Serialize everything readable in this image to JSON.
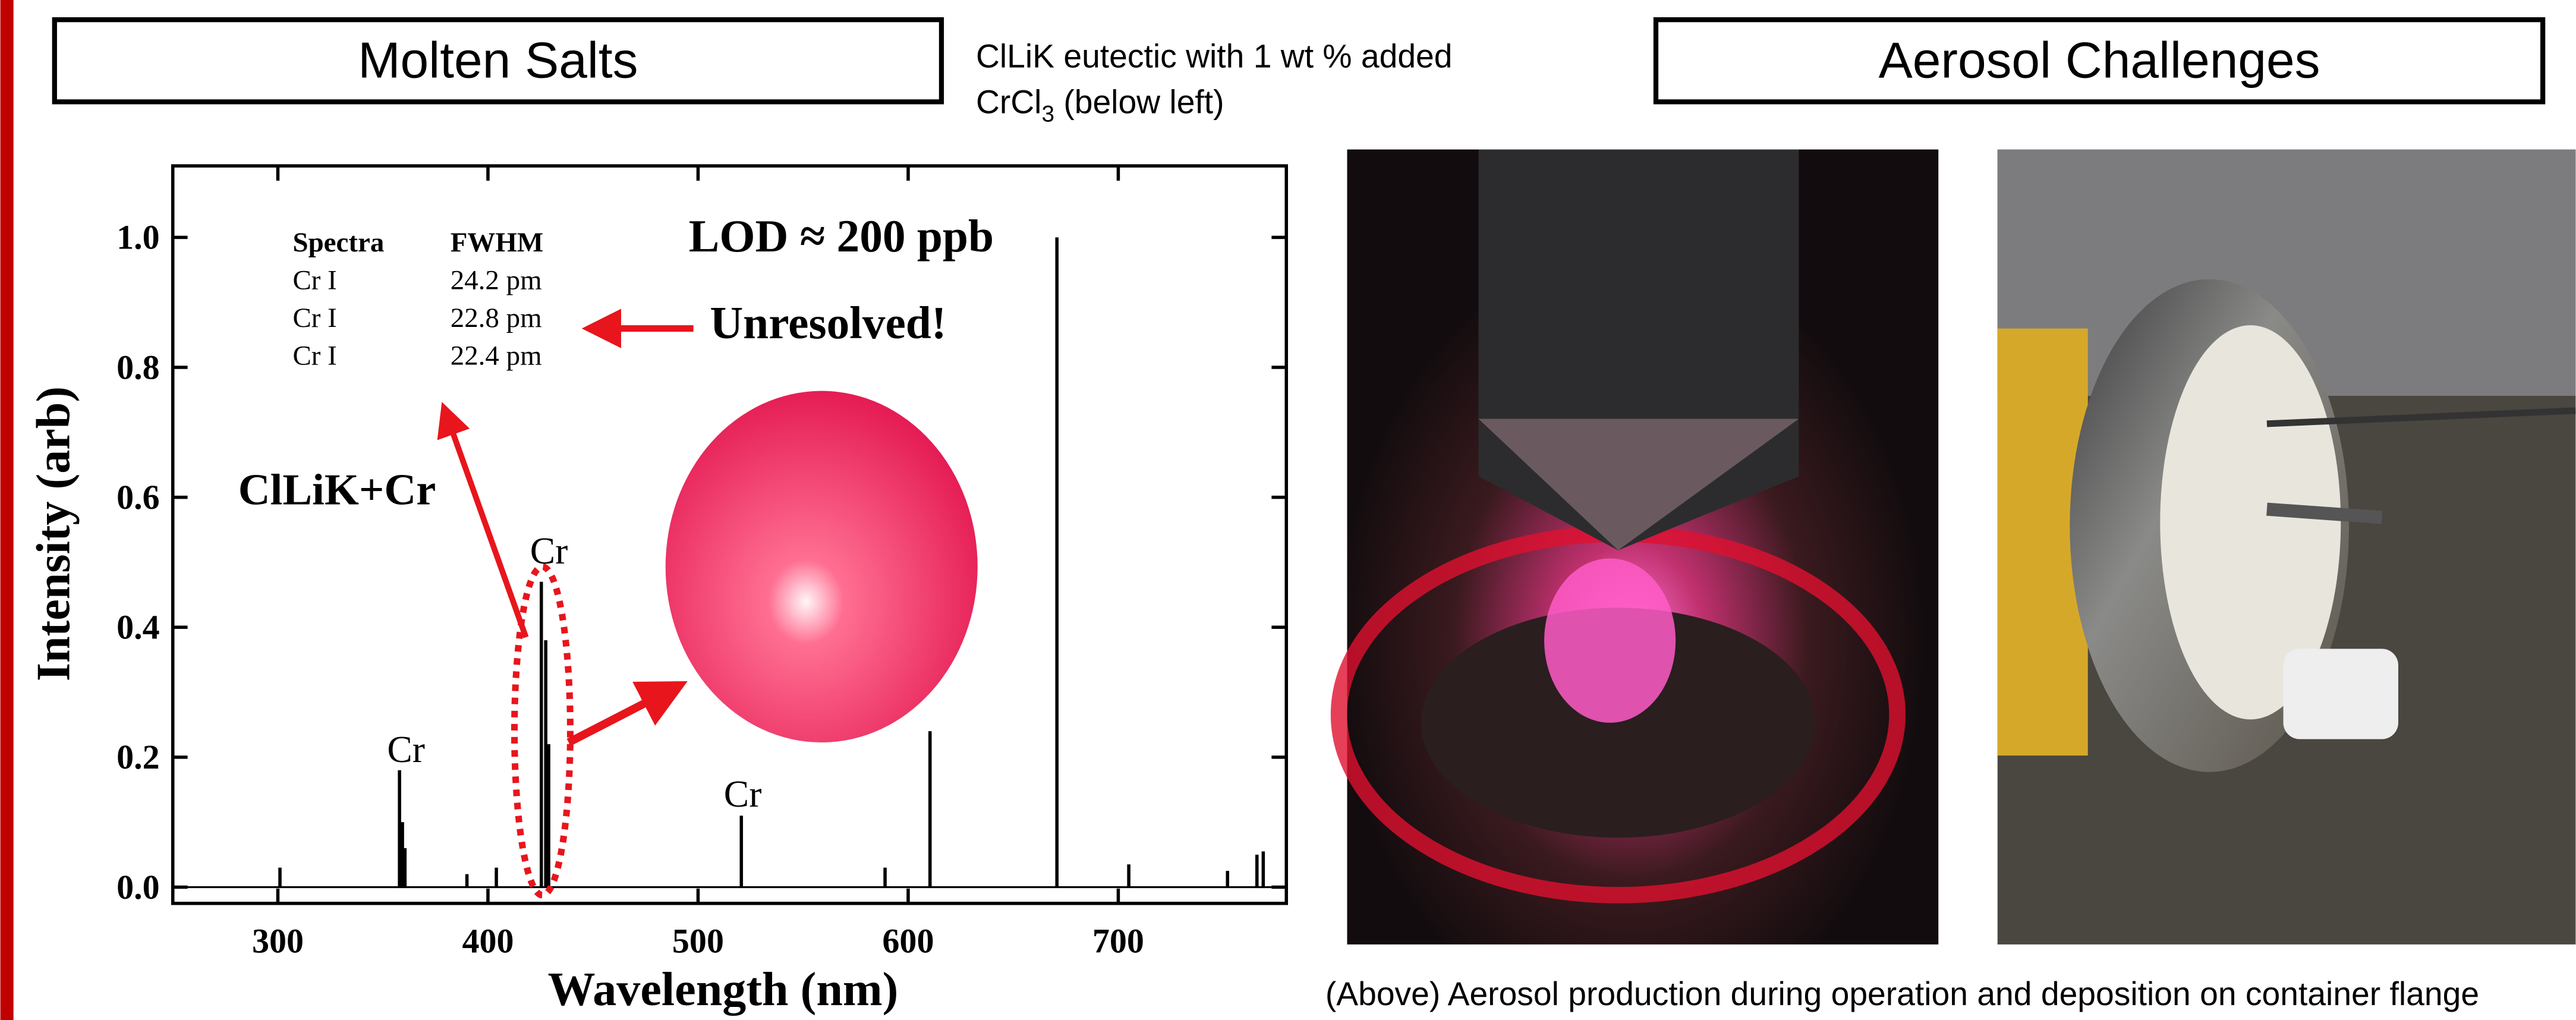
{
  "header": {
    "left_title": "Molten Salts",
    "right_title": "Aerosol Challenges",
    "note": {
      "line1": "ClLiK eutectic with 1 wt % added",
      "line2_main": "CrCl",
      "line2_sub": "3",
      "line2_rest": " (below left)"
    }
  },
  "chart_data": {
    "type": "stem",
    "x_label": "Wavelength (nm)",
    "y_label": "Intensity (arb)",
    "color": "#000000",
    "x": [
      301,
      357.9,
      359.3,
      360.5,
      390,
      404,
      425.4,
      427.5,
      428.9,
      520.6,
      589,
      610.4,
      670.8,
      705,
      752,
      766,
      769
    ],
    "values": [
      0.03,
      0.18,
      0.1,
      0.06,
      0.02,
      0.03,
      0.47,
      0.38,
      0.22,
      0.11,
      0.03,
      0.24,
      1.0,
      0.035,
      0.025,
      0.05,
      0.055
    ],
    "xlim": [
      250,
      780
    ],
    "ylim": [
      -0.025,
      1.11
    ],
    "xticks": [
      300,
      400,
      500,
      600,
      700
    ],
    "yticks": [
      {
        "value": 0,
        "label": "0.0"
      },
      {
        "value": 0.2,
        "label": "0.2"
      },
      {
        "value": 0.4,
        "label": "0.4"
      },
      {
        "value": 0.6,
        "label": "0.6"
      },
      {
        "value": 0.8,
        "label": "0.8"
      },
      {
        "value": 1.0,
        "label": "1.0"
      }
    ],
    "annotations": [
      "Cr",
      "Cr",
      "Cr",
      "ClLiK+Cr",
      "LOD ≈ 200 ppb",
      "Unresolved!"
    ],
    "table": {
      "header": [
        "Spectra",
        "FWHM"
      ],
      "rows": [
        [
          "Cr I",
          "24.2 pm"
        ],
        [
          "Cr I",
          "22.8 pm"
        ],
        [
          "Cr I",
          "22.4 pm"
        ]
      ]
    }
  },
  "caption": "(Above) Aerosol production during operation and deposition on container flange"
}
